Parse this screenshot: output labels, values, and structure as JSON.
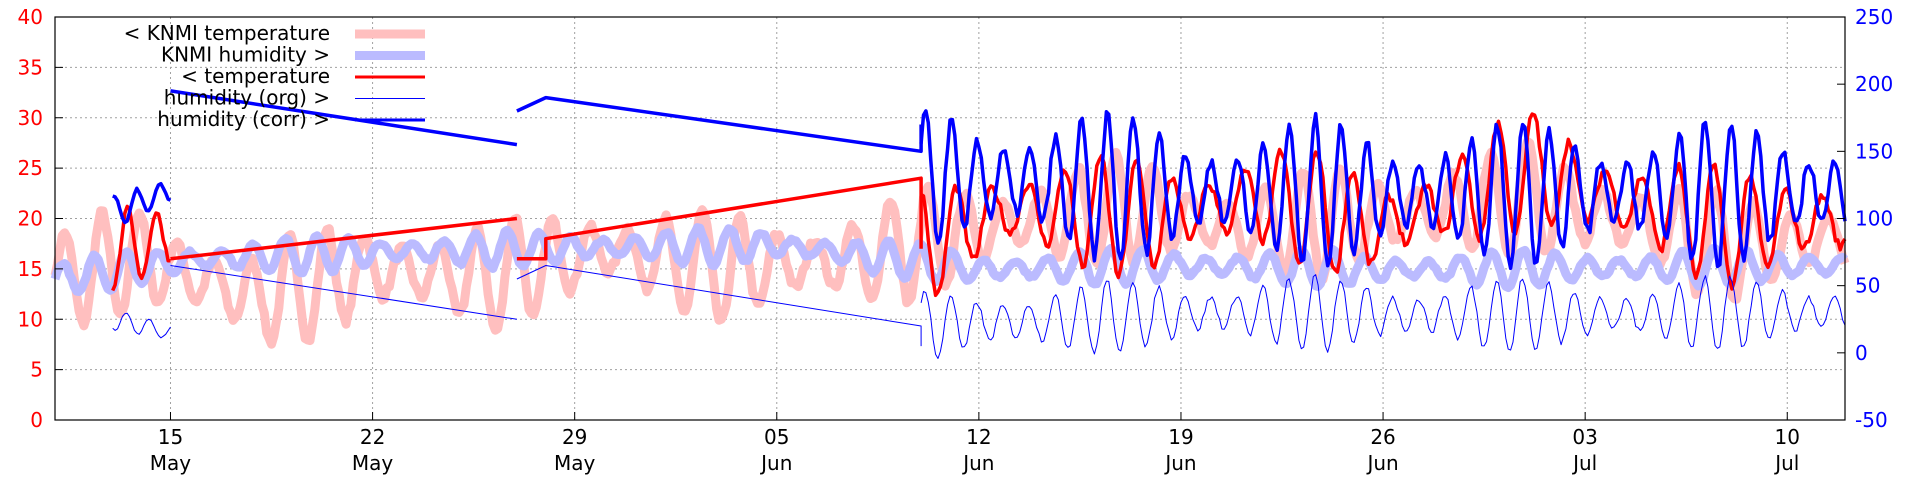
{
  "chart_data": {
    "type": "line",
    "title": "",
    "grid": true,
    "legend_placement": "top-left",
    "x_range": [
      "2023-05-11",
      "2023-07-12"
    ],
    "x_ticks": [
      {
        "date": "2023-05-15",
        "day": "15",
        "month": "May"
      },
      {
        "date": "2023-05-22",
        "day": "22",
        "month": "May"
      },
      {
        "date": "2023-05-29",
        "day": "29",
        "month": "May"
      },
      {
        "date": "2023-06-05",
        "day": "05",
        "month": "Jun"
      },
      {
        "date": "2023-06-12",
        "day": "12",
        "month": "Jun"
      },
      {
        "date": "2023-06-19",
        "day": "19",
        "month": "Jun"
      },
      {
        "date": "2023-06-26",
        "day": "26",
        "month": "Jun"
      },
      {
        "date": "2023-07-03",
        "day": "03",
        "month": "Jul"
      },
      {
        "date": "2023-07-10",
        "day": "10",
        "month": "Jul"
      }
    ],
    "y_left": {
      "range": [
        0,
        40
      ],
      "ticks": [
        0,
        5,
        10,
        15,
        20,
        25,
        30,
        35,
        40
      ],
      "color": "#ff0000"
    },
    "y_right": {
      "range": [
        -50,
        250
      ],
      "ticks": [
        -50,
        0,
        50,
        100,
        150,
        200,
        250
      ],
      "color": "#0000ff"
    },
    "series": [
      {
        "name": "< KNMI temperature",
        "axis": "left",
        "color": "#ffbfbf",
        "width": 9,
        "legend_swatch_width": 9,
        "mode": "osc",
        "points": [
          [
            "2023-05-11",
            14
          ],
          [
            "2023-05-14",
            16
          ],
          [
            "2023-05-18",
            12
          ],
          [
            "2023-05-22",
            15
          ],
          [
            "2023-05-26",
            14
          ],
          [
            "2023-05-30",
            17
          ],
          [
            "2023-06-03",
            15
          ],
          [
            "2023-06-08",
            16
          ],
          [
            "2023-06-12",
            19
          ],
          [
            "2023-06-17",
            21
          ],
          [
            "2023-06-21",
            19
          ],
          [
            "2023-06-26",
            20
          ],
          [
            "2023-07-01",
            22
          ],
          [
            "2023-07-04",
            20
          ],
          [
            "2023-07-08",
            17
          ],
          [
            "2023-07-12",
            18
          ]
        ],
        "amp": 5.5,
        "period": 1.3
      },
      {
        "name": "KNMI humidity >",
        "axis": "right",
        "color": "#bbbbff",
        "width": 9,
        "legend_swatch_width": 9,
        "mode": "osc",
        "points": [
          [
            "2023-05-11",
            55
          ],
          [
            "2023-05-16",
            70
          ],
          [
            "2023-05-22",
            75
          ],
          [
            "2023-05-29",
            78
          ],
          [
            "2023-06-05",
            80
          ],
          [
            "2023-06-12",
            62
          ],
          [
            "2023-06-19",
            65
          ],
          [
            "2023-06-26",
            62
          ],
          [
            "2023-07-03",
            63
          ],
          [
            "2023-07-12",
            65
          ]
        ],
        "amp": 14,
        "period": 1.1
      },
      {
        "name": "< temperature",
        "axis": "left",
        "color": "#ff0000",
        "width": 3.5,
        "legend_swatch_width": 3,
        "mode": "segments",
        "segments": [
          {
            "osc": true,
            "points": [
              [
                "2023-05-13",
                17
              ],
              [
                "2023-05-15",
                18
              ]
            ],
            "amp": 4,
            "period": 1
          },
          {
            "osc": false,
            "points": [
              [
                "2023-05-15",
                16
              ],
              [
                "2023-05-27",
                20
              ]
            ]
          },
          {
            "osc": false,
            "points": [
              [
                "2023-05-27",
                16
              ],
              [
                "2023-05-28",
                16
              ],
              [
                "2023-05-28",
                18
              ],
              [
                "2023-06-10",
                24
              ],
              [
                "2023-06-10",
                17
              ]
            ]
          },
          {
            "osc": true,
            "points": [
              [
                "2023-06-10",
                17
              ],
              [
                "2023-06-13",
                21
              ],
              [
                "2023-06-18",
                20
              ],
              [
                "2023-06-22",
                22
              ],
              [
                "2023-06-26",
                19
              ],
              [
                "2023-07-01",
                25
              ],
              [
                "2023-07-04",
                22
              ],
              [
                "2023-07-08",
                19
              ],
              [
                "2023-07-12",
                20
              ]
            ],
            "amp": 6,
            "period": 1.25
          }
        ]
      },
      {
        "name": "humidity (org) >",
        "axis": "right",
        "color": "#0000ff",
        "width": 1,
        "legend_swatch_width": 1,
        "mode": "segments",
        "segments": [
          {
            "osc": true,
            "points": [
              [
                "2023-05-13",
                25
              ],
              [
                "2023-05-15",
                15
              ]
            ],
            "amp": 8,
            "period": 0.8
          },
          {
            "osc": false,
            "points": [
              [
                "2023-05-15",
                65
              ],
              [
                "2023-05-27",
                25
              ]
            ]
          },
          {
            "osc": false,
            "points": [
              [
                "2023-05-27",
                55
              ],
              [
                "2023-05-28",
                65
              ],
              [
                "2023-06-10",
                20
              ],
              [
                "2023-06-10",
                5
              ]
            ]
          },
          {
            "osc": true,
            "points": [
              [
                "2023-06-10",
                20
              ],
              [
                "2023-06-20",
                30
              ],
              [
                "2023-06-30",
                28
              ],
              [
                "2023-07-12",
                30
              ]
            ],
            "amp": 28,
            "period": 0.9
          }
        ]
      },
      {
        "name": "humidity (corr) >",
        "axis": "right",
        "color": "#0000ff",
        "width": 3.5,
        "legend_swatch_width": 3,
        "mode": "segments",
        "segments": [
          {
            "osc": true,
            "points": [
              [
                "2023-05-13",
                105
              ],
              [
                "2023-05-15",
                120
              ]
            ],
            "amp": 12,
            "period": 0.8
          },
          {
            "osc": false,
            "points": [
              [
                "2023-05-15",
                195
              ],
              [
                "2023-05-27",
                155
              ]
            ]
          },
          {
            "osc": false,
            "points": [
              [
                "2023-05-27",
                180
              ],
              [
                "2023-05-28",
                190
              ],
              [
                "2023-06-10",
                150
              ],
              [
                "2023-06-10",
                170
              ]
            ]
          },
          {
            "osc": true,
            "points": [
              [
                "2023-06-10",
                130
              ],
              [
                "2023-06-20",
                120
              ],
              [
                "2023-06-30",
                118
              ],
              [
                "2023-07-12",
                120
              ]
            ],
            "amp": 55,
            "period": 0.9
          }
        ]
      }
    ]
  }
}
